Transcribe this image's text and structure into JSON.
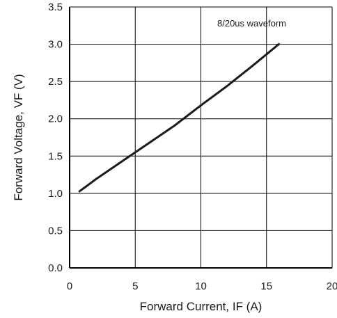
{
  "chart_data": {
    "type": "line",
    "title": "",
    "xlabel": "Forward Current, IF (A)",
    "ylabel": "Forward Voltage, VF (V)",
    "xlim": [
      0,
      20
    ],
    "ylim": [
      0,
      3.5
    ],
    "xticks": [
      "0",
      "5",
      "10",
      "15",
      "20"
    ],
    "yticks": [
      "0.0",
      "0.5",
      "1.0",
      "1.5",
      "2.0",
      "2.5",
      "3.0",
      "3.5"
    ],
    "grid": true,
    "annotation": "8/20us waveform",
    "series": [
      {
        "x": [
          0.7,
          2,
          4,
          6,
          8,
          10,
          12,
          14,
          16
        ],
        "y": [
          1.02,
          1.19,
          1.43,
          1.67,
          1.91,
          2.18,
          2.44,
          2.72,
          3.01
        ]
      }
    ],
    "colors": {
      "line": "#1a1a1a",
      "grid": "#000000",
      "axis": "#000000"
    }
  }
}
